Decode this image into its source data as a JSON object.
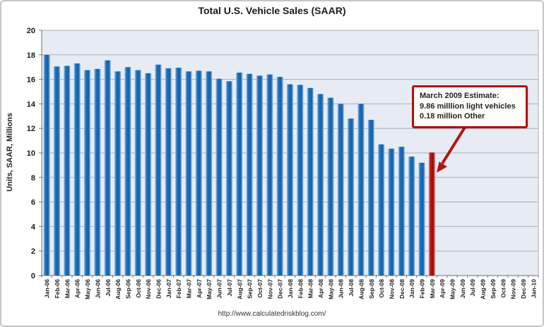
{
  "chart_data": {
    "type": "bar",
    "title": "Total U.S. Vehicle Sales (SAAR)",
    "ylabel": "Units, SAAR, Millions",
    "xlabel": "",
    "ylim": [
      0,
      20
    ],
    "ytick_step": 2,
    "grid": true,
    "categories": [
      "Jan-06",
      "Feb-06",
      "Mar-06",
      "Apr-06",
      "May-06",
      "Jun-06",
      "Jul-06",
      "Aug-06",
      "Sep-06",
      "Oct-06",
      "Nov-06",
      "Dec-06",
      "Jan-07",
      "Feb-07",
      "Mar-07",
      "Apr-07",
      "May-07",
      "Jun-07",
      "Jul-07",
      "Aug-07",
      "Sep-07",
      "Oct-07",
      "Nov-07",
      "Dec-07",
      "Jan-08",
      "Feb-08",
      "Mar-08",
      "Apr-08",
      "May-08",
      "Jun-08",
      "Jul-08",
      "Aug-08",
      "Sep-08",
      "Oct-08",
      "Nov-08",
      "Dec-08",
      "Jan-09",
      "Feb-09",
      "Mar-09",
      "Apr-09",
      "May-09",
      "Jun-09",
      "Jul-09",
      "Aug-09",
      "Sep-09",
      "Oct-09",
      "Nov-09",
      "Dec-09",
      "Jan-10"
    ],
    "values": [
      18.0,
      17.05,
      17.1,
      17.3,
      16.75,
      16.85,
      17.55,
      16.65,
      17.0,
      16.75,
      16.5,
      17.2,
      16.9,
      16.95,
      16.65,
      16.7,
      16.65,
      16.05,
      15.85,
      16.55,
      16.45,
      16.3,
      16.4,
      16.2,
      15.6,
      15.55,
      15.3,
      14.8,
      14.5,
      14.0,
      12.8,
      14.0,
      12.7,
      10.7,
      10.35,
      10.5,
      9.7,
      9.2,
      10.04
    ],
    "highlight_index": 38,
    "colors": {
      "bar": "#1a6fbf",
      "bar_edge_light": "#9dbcde",
      "bar_dark": "#1262a8",
      "highlight": "#c01212",
      "highlight_light": "#e09090",
      "highlight_dark": "#9c0b0b",
      "plot_bg": "#e7ecf4",
      "gridline": "#a9aeb8",
      "axis_line": "#6b7077",
      "arrow": "#b41414"
    },
    "annotation": {
      "lines": {
        "0": "March 2009 Estimate:",
        "1": "9.86 milllion light vehicles",
        "2": "0.18 million Other"
      },
      "border_color": "#b50d0d"
    }
  },
  "footer": {
    "url": "http://www.calculatedriskblog.com/"
  }
}
